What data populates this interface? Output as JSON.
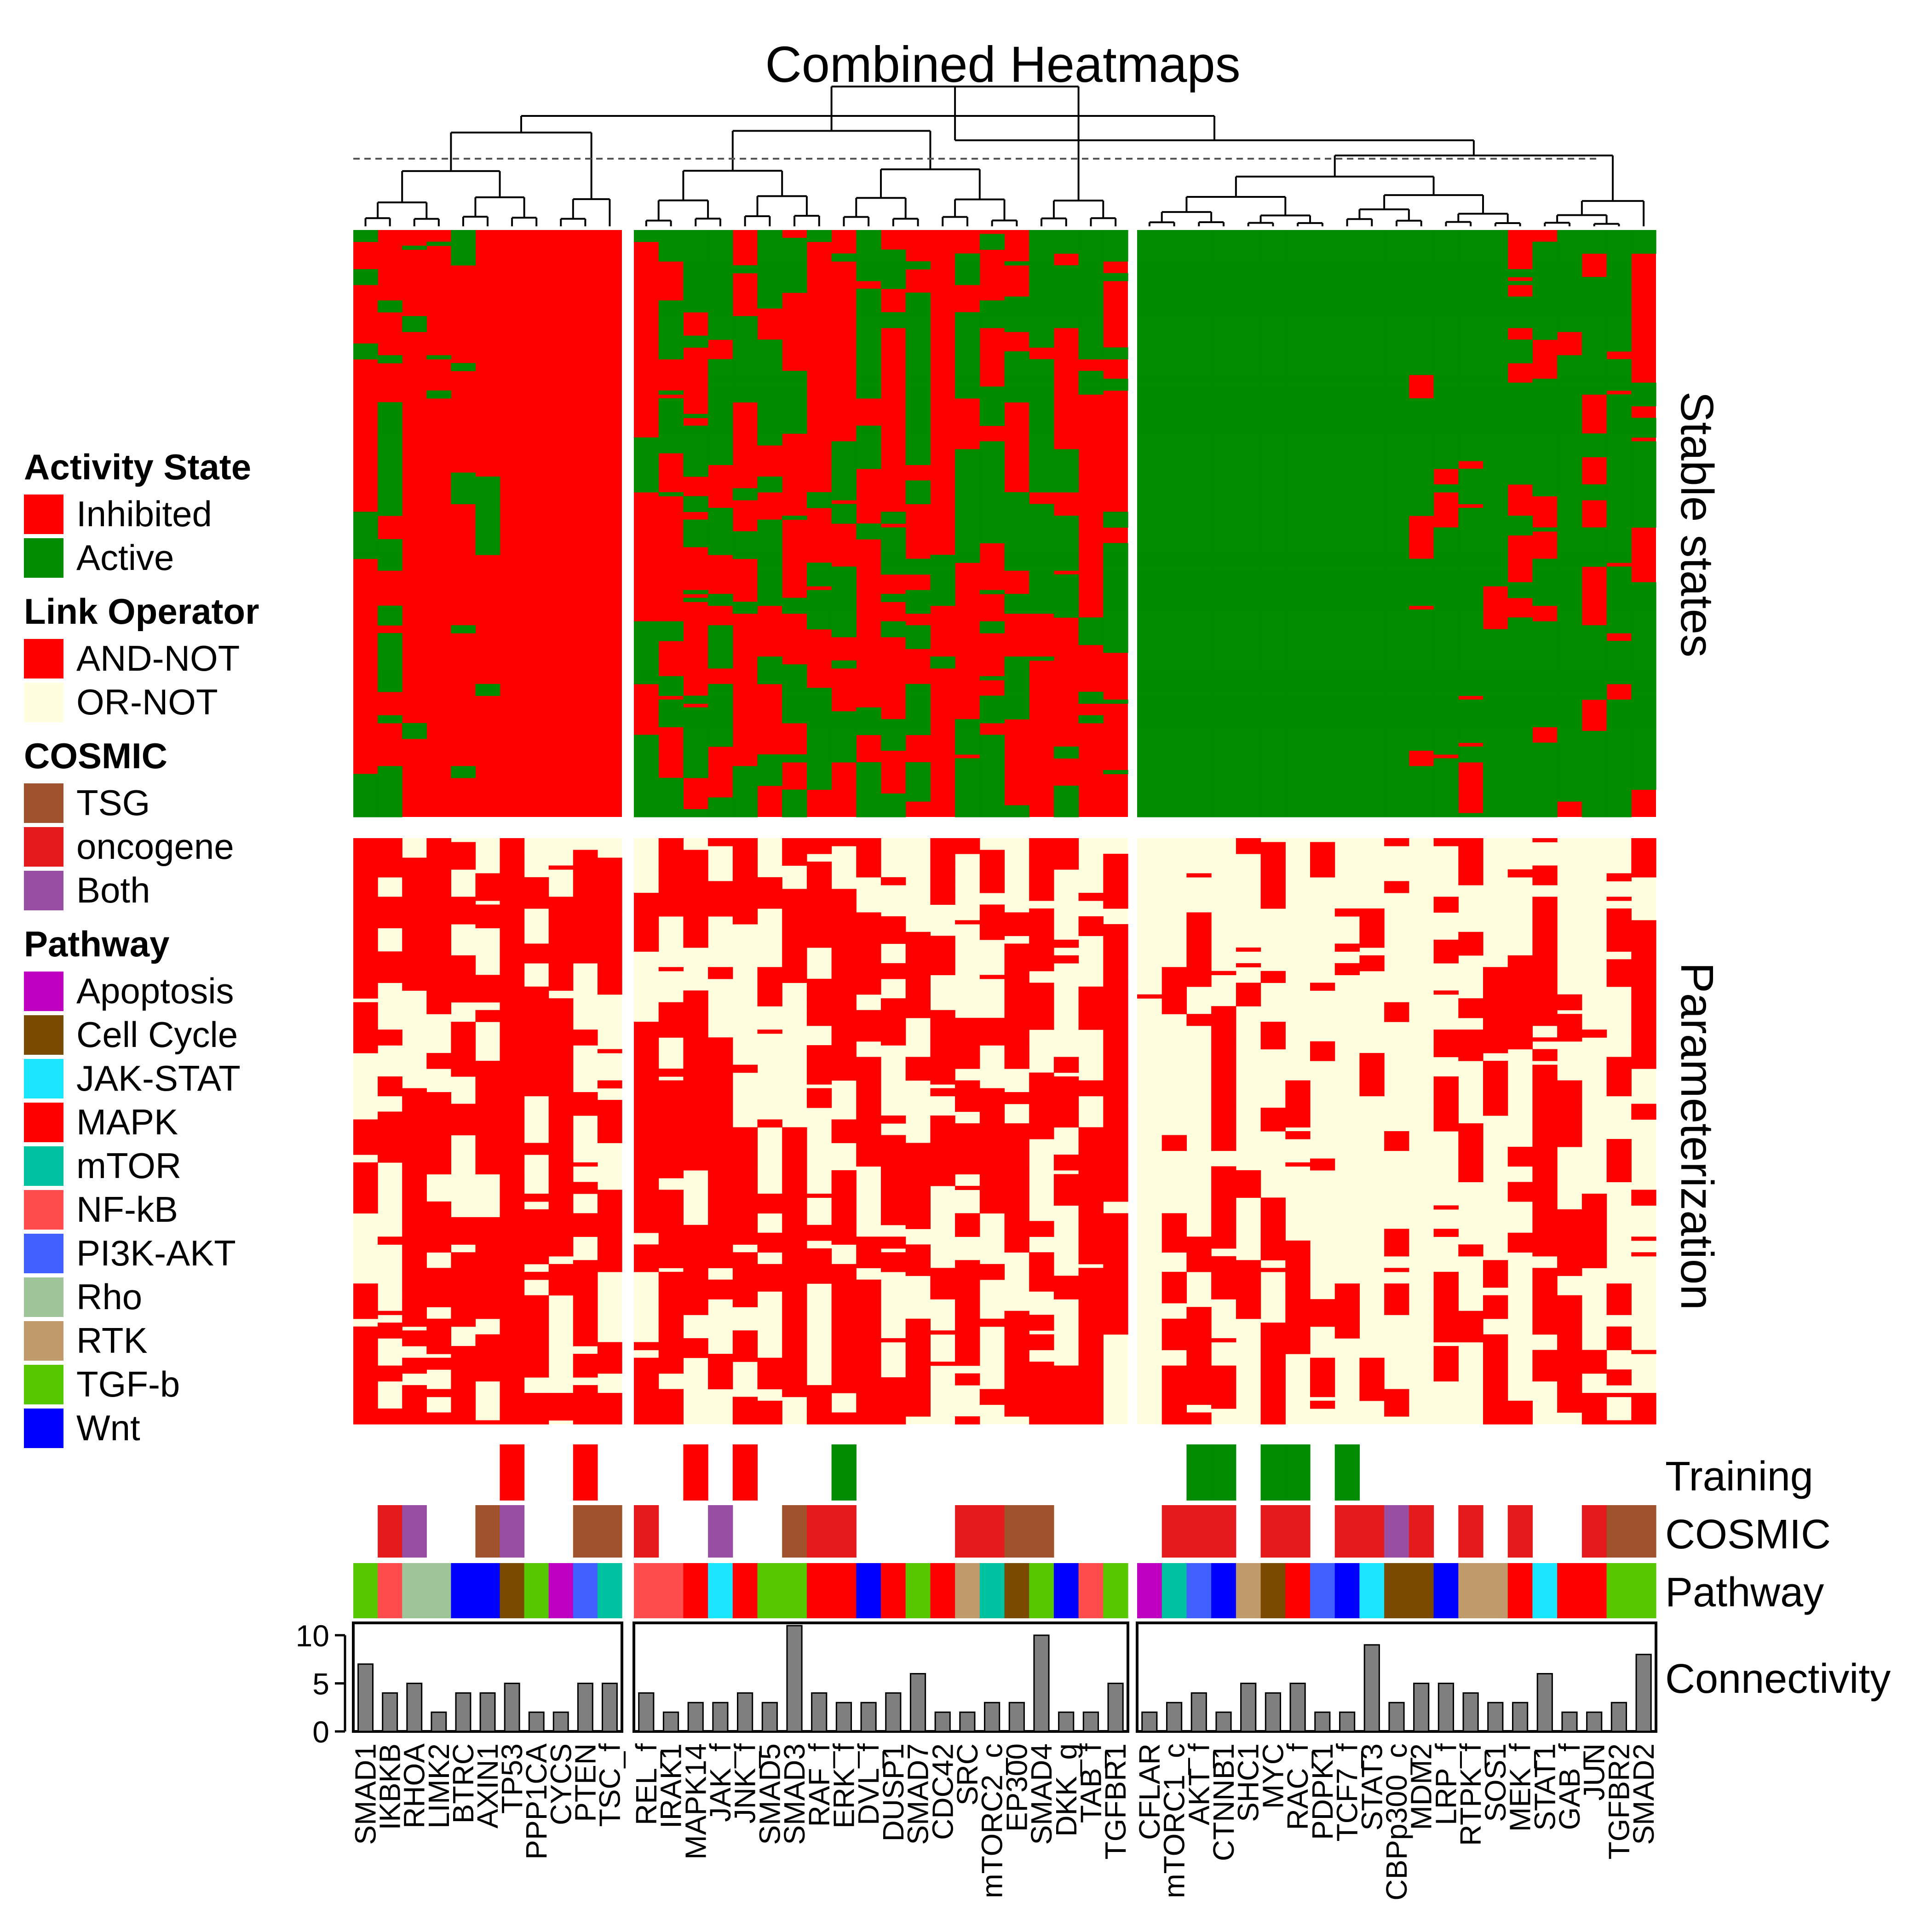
{
  "chart_data": {
    "type": "heatmap",
    "title": "Combined Heatmaps",
    "row_panels": [
      "Stable states",
      "Parameterization"
    ],
    "annotation_rows": [
      "Training",
      "COSMIC",
      "Pathway",
      "Connectivity"
    ],
    "colors": {
      "inhibited": "#FF0000",
      "active": "#008B00",
      "and_not": "#FF0000",
      "or_not": "#FFFFE0"
    },
    "clusters": [
      {
        "nodes": [
          "SMAD1",
          "IKBKB",
          "RHOA",
          "LIMK2",
          "BTRC",
          "AXIN1",
          "TP53",
          "PPP1CA",
          "CYCS",
          "PTEN",
          "TSC_f"
        ],
        "training": [
          "",
          "",
          "",
          "",
          "",
          "",
          "inhibited",
          "",
          "",
          "inhibited",
          ""
        ],
        "cosmic": [
          "",
          "oncogene",
          "Both",
          "",
          "",
          "TSG",
          "Both",
          "",
          "",
          "TSG",
          "TSG"
        ],
        "pathway": [
          "TGF-b",
          "NF-kB",
          "Rho",
          "Rho",
          "Wnt",
          "Wnt",
          "Cell Cycle",
          "TGF-b",
          "Apoptosis",
          "PI3K-AKT",
          "mTOR"
        ],
        "connectivity": [
          7,
          4,
          5,
          2,
          4,
          4,
          5,
          2,
          2,
          5,
          5
        ]
      },
      {
        "nodes": [
          "REL_f",
          "IRAK1",
          "MAPK14",
          "JAK_f",
          "JNK_f",
          "SMAD5",
          "SMAD3",
          "RAF_f",
          "ERK_f",
          "DVL_f",
          "DUSP1",
          "SMAD7",
          "CDC42",
          "SRC",
          "mTORC2_c",
          "EP300",
          "SMAD4",
          "DKK_g",
          "TAB_f",
          "TGFBR1"
        ],
        "training": [
          "",
          "",
          "inhibited",
          "",
          "inhibited",
          "",
          "",
          "",
          "active",
          "",
          "",
          "",
          "",
          "",
          "",
          "",
          "",
          "",
          "",
          ""
        ],
        "cosmic": [
          "oncogene",
          "",
          "",
          "Both",
          "",
          "",
          "TSG",
          "oncogene",
          "oncogene",
          "",
          "",
          "",
          "",
          "oncogene",
          "oncogene",
          "TSG",
          "TSG",
          "",
          "",
          ""
        ],
        "pathway": [
          "NF-kB",
          "NF-kB",
          "MAPK",
          "JAK-STAT",
          "MAPK",
          "TGF-b",
          "TGF-b",
          "MAPK",
          "MAPK",
          "Wnt",
          "MAPK",
          "TGF-b",
          "MAPK",
          "RTK",
          "mTOR",
          "Cell Cycle",
          "TGF-b",
          "Wnt",
          "NF-kB",
          "TGF-b"
        ],
        "connectivity": [
          4,
          2,
          3,
          3,
          4,
          3,
          11,
          4,
          3,
          3,
          4,
          6,
          2,
          2,
          3,
          3,
          10,
          2,
          2,
          5
        ]
      },
      {
        "nodes": [
          "CFLAR",
          "mTORC1_c",
          "AKT_f",
          "CTNNB1",
          "SHC1",
          "MYC",
          "RAC_f",
          "PDPK1",
          "TCF7_f",
          "STAT3",
          "CBPp300_c",
          "MDM2",
          "LRP_f",
          "RTPK_f",
          "SOS1",
          "MEK_f",
          "STAT1",
          "GAB_f",
          "JUN",
          "TGFBR2",
          "SMAD2"
        ],
        "training": [
          "",
          "",
          "active",
          "active",
          "",
          "active",
          "active",
          "",
          "active",
          "",
          "",
          "",
          "",
          "",
          "",
          "",
          "",
          "",
          "",
          "",
          ""
        ],
        "cosmic": [
          "",
          "oncogene",
          "oncogene",
          "oncogene",
          "",
          "oncogene",
          "oncogene",
          "",
          "oncogene",
          "oncogene",
          "Both",
          "oncogene",
          "",
          "oncogene",
          "",
          "oncogene",
          "",
          "",
          "oncogene",
          "TSG",
          "TSG"
        ],
        "pathway": [
          "Apoptosis",
          "mTOR",
          "PI3K-AKT",
          "Wnt",
          "RTK",
          "Cell Cycle",
          "MAPK",
          "PI3K-AKT",
          "Wnt",
          "JAK-STAT",
          "Cell Cycle",
          "Cell Cycle",
          "Wnt",
          "RTK",
          "RTK",
          "MAPK",
          "JAK-STAT",
          "MAPK",
          "MAPK",
          "TGF-b",
          "TGF-b"
        ],
        "connectivity": [
          2,
          3,
          4,
          2,
          5,
          4,
          5,
          2,
          2,
          9,
          3,
          5,
          5,
          4,
          3,
          3,
          6,
          2,
          2,
          3,
          8
        ]
      }
    ],
    "connectivity_axis": {
      "ticks": [
        0,
        5,
        10
      ],
      "ylim": [
        0,
        11
      ]
    },
    "cluster_profiles": {
      "stable_active_prob": [
        [
          0.1,
          0.25,
          0.05,
          0.15,
          0.35,
          0.05,
          0.0,
          0.0,
          0.0,
          0.0,
          0.0
        ],
        [
          0.45,
          0.4,
          0.5,
          0.55,
          0.35,
          0.6,
          0.35,
          0.4,
          0.6,
          0.55,
          0.45,
          0.55,
          0.3,
          0.4,
          0.5,
          0.45,
          0.35,
          0.5,
          0.4,
          0.45
        ],
        [
          1.0,
          1.0,
          1.0,
          1.0,
          1.0,
          1.0,
          1.0,
          1.0,
          1.0,
          1.0,
          0.98,
          0.9,
          0.9,
          0.85,
          0.8,
          0.75,
          0.72,
          0.7,
          0.65,
          0.62,
          0.6
        ]
      ],
      "param_and_not_prob": [
        [
          0.75,
          0.6,
          0.65,
          0.6,
          0.55,
          0.6,
          0.98,
          0.7,
          0.6,
          0.6,
          0.6
        ],
        [
          0.7,
          0.6,
          0.65,
          0.55,
          0.6,
          0.5,
          0.65,
          0.55,
          0.45,
          0.6,
          0.55,
          0.6,
          0.5,
          0.55,
          0.5,
          0.55,
          0.6,
          0.5,
          0.55,
          0.6
        ],
        [
          0.05,
          0.35,
          0.4,
          0.35,
          0.3,
          0.35,
          0.3,
          0.3,
          0.3,
          0.35,
          0.3,
          0.05,
          0.4,
          0.35,
          0.35,
          0.35,
          0.4,
          0.35,
          0.35,
          0.3,
          0.4
        ]
      ]
    }
  },
  "legend": {
    "sections": [
      {
        "title": "Activity State",
        "items": [
          {
            "label": "Inhibited",
            "color": "#FF0000"
          },
          {
            "label": "Active",
            "color": "#008B00"
          }
        ]
      },
      {
        "title": "Link Operator",
        "items": [
          {
            "label": "AND-NOT",
            "color": "#FF0000"
          },
          {
            "label": "OR-NOT",
            "color": "#FFFFE0"
          }
        ]
      },
      {
        "title": "COSMIC",
        "items": [
          {
            "label": "TSG",
            "color": "#A0522D"
          },
          {
            "label": "oncogene",
            "color": "#E41A1C"
          },
          {
            "label": "Both",
            "color": "#984EA3"
          }
        ]
      },
      {
        "title": "Pathway",
        "items": [
          {
            "label": "Apoptosis",
            "color": "#C000C0"
          },
          {
            "label": "Cell Cycle",
            "color": "#7A4A00"
          },
          {
            "label": "JAK-STAT",
            "color": "#1AE6FF"
          },
          {
            "label": "MAPK",
            "color": "#FF0000"
          },
          {
            "label": "mTOR",
            "color": "#00C1A0"
          },
          {
            "label": "NF-kB",
            "color": "#FF4D4D"
          },
          {
            "label": "PI3K-AKT",
            "color": "#4060FF"
          },
          {
            "label": "Rho",
            "color": "#A0C49A"
          },
          {
            "label": "RTK",
            "color": "#C09A6A"
          },
          {
            "label": "TGF-b",
            "color": "#55C800"
          },
          {
            "label": "Wnt",
            "color": "#0000FF"
          }
        ]
      }
    ]
  }
}
